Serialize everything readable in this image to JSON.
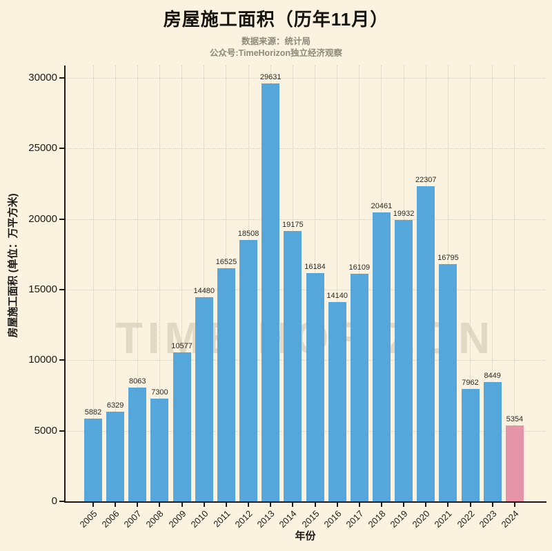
{
  "header": {
    "title": "房屋施工面积（历年11月）",
    "subtitle_line1": "数据来源：统计局",
    "subtitle_line2": "公众号:TimeHorizon独立经济观察"
  },
  "watermark": "TIME HORIZON",
  "chart_data": {
    "type": "bar",
    "title": "房屋施工面积（历年11月）",
    "xlabel": "年份",
    "ylabel": "房屋施工面积 (单位：万平方米)",
    "categories": [
      "2005",
      "2006",
      "2007",
      "2008",
      "2009",
      "2010",
      "2011",
      "2012",
      "2013",
      "2014",
      "2015",
      "2016",
      "2017",
      "2018",
      "2019",
      "2020",
      "2021",
      "2022",
      "2023",
      "2024"
    ],
    "values": [
      5882,
      6329,
      8063,
      7300,
      10577,
      14480,
      16525,
      18508,
      29631,
      19175,
      16184,
      14140,
      16109,
      20461,
      19932,
      22307,
      16795,
      7962,
      8449,
      5354
    ],
    "ylim": [
      0,
      30000
    ],
    "yticks": [
      0,
      5000,
      10000,
      15000,
      20000,
      25000,
      30000
    ],
    "grid": true,
    "legend": null,
    "bar_color": "#55A7DB",
    "highlight_color": "#E593A7",
    "highlight_index": 19,
    "background_color": "#FBF2E0"
  }
}
